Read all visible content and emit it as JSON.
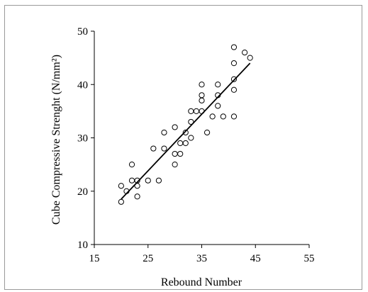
{
  "chart_data": {
    "type": "scatter",
    "title": "",
    "xlabel": "Rebound Number",
    "ylabel": "Cube Compressive Strenght (N/mm²)",
    "xlim": [
      15,
      55
    ],
    "ylim": [
      10,
      50
    ],
    "x_ticks": [
      "15",
      "25",
      "35",
      "45",
      "55"
    ],
    "y_ticks": [
      "10",
      "20",
      "30",
      "40",
      "50"
    ],
    "grid": false,
    "legend": "none",
    "series": [
      {
        "marker": "open-circle",
        "points": [
          [
            20,
            21
          ],
          [
            20,
            18
          ],
          [
            21,
            20
          ],
          [
            22,
            25
          ],
          [
            22,
            22
          ],
          [
            23,
            22
          ],
          [
            23,
            21
          ],
          [
            23,
            19
          ],
          [
            25,
            22
          ],
          [
            26,
            28
          ],
          [
            27,
            22
          ],
          [
            28,
            31
          ],
          [
            28,
            28
          ],
          [
            30,
            32
          ],
          [
            30,
            27
          ],
          [
            30,
            25
          ],
          [
            31,
            29
          ],
          [
            31,
            27
          ],
          [
            32,
            31
          ],
          [
            32,
            29
          ],
          [
            33,
            35
          ],
          [
            33,
            33
          ],
          [
            33,
            30
          ],
          [
            34,
            35
          ],
          [
            35,
            40
          ],
          [
            35,
            38
          ],
          [
            35,
            37
          ],
          [
            35,
            35
          ],
          [
            36,
            31
          ],
          [
            37,
            34
          ],
          [
            38,
            40
          ],
          [
            38,
            38
          ],
          [
            38,
            36
          ],
          [
            39,
            34
          ],
          [
            41,
            47
          ],
          [
            41,
            44
          ],
          [
            41,
            41
          ],
          [
            41,
            39
          ],
          [
            41,
            34
          ],
          [
            43,
            46
          ],
          [
            44,
            45
          ]
        ]
      }
    ],
    "trendline": {
      "type": "linear",
      "x": [
        20,
        44
      ],
      "y": [
        18.5,
        44
      ]
    }
  }
}
